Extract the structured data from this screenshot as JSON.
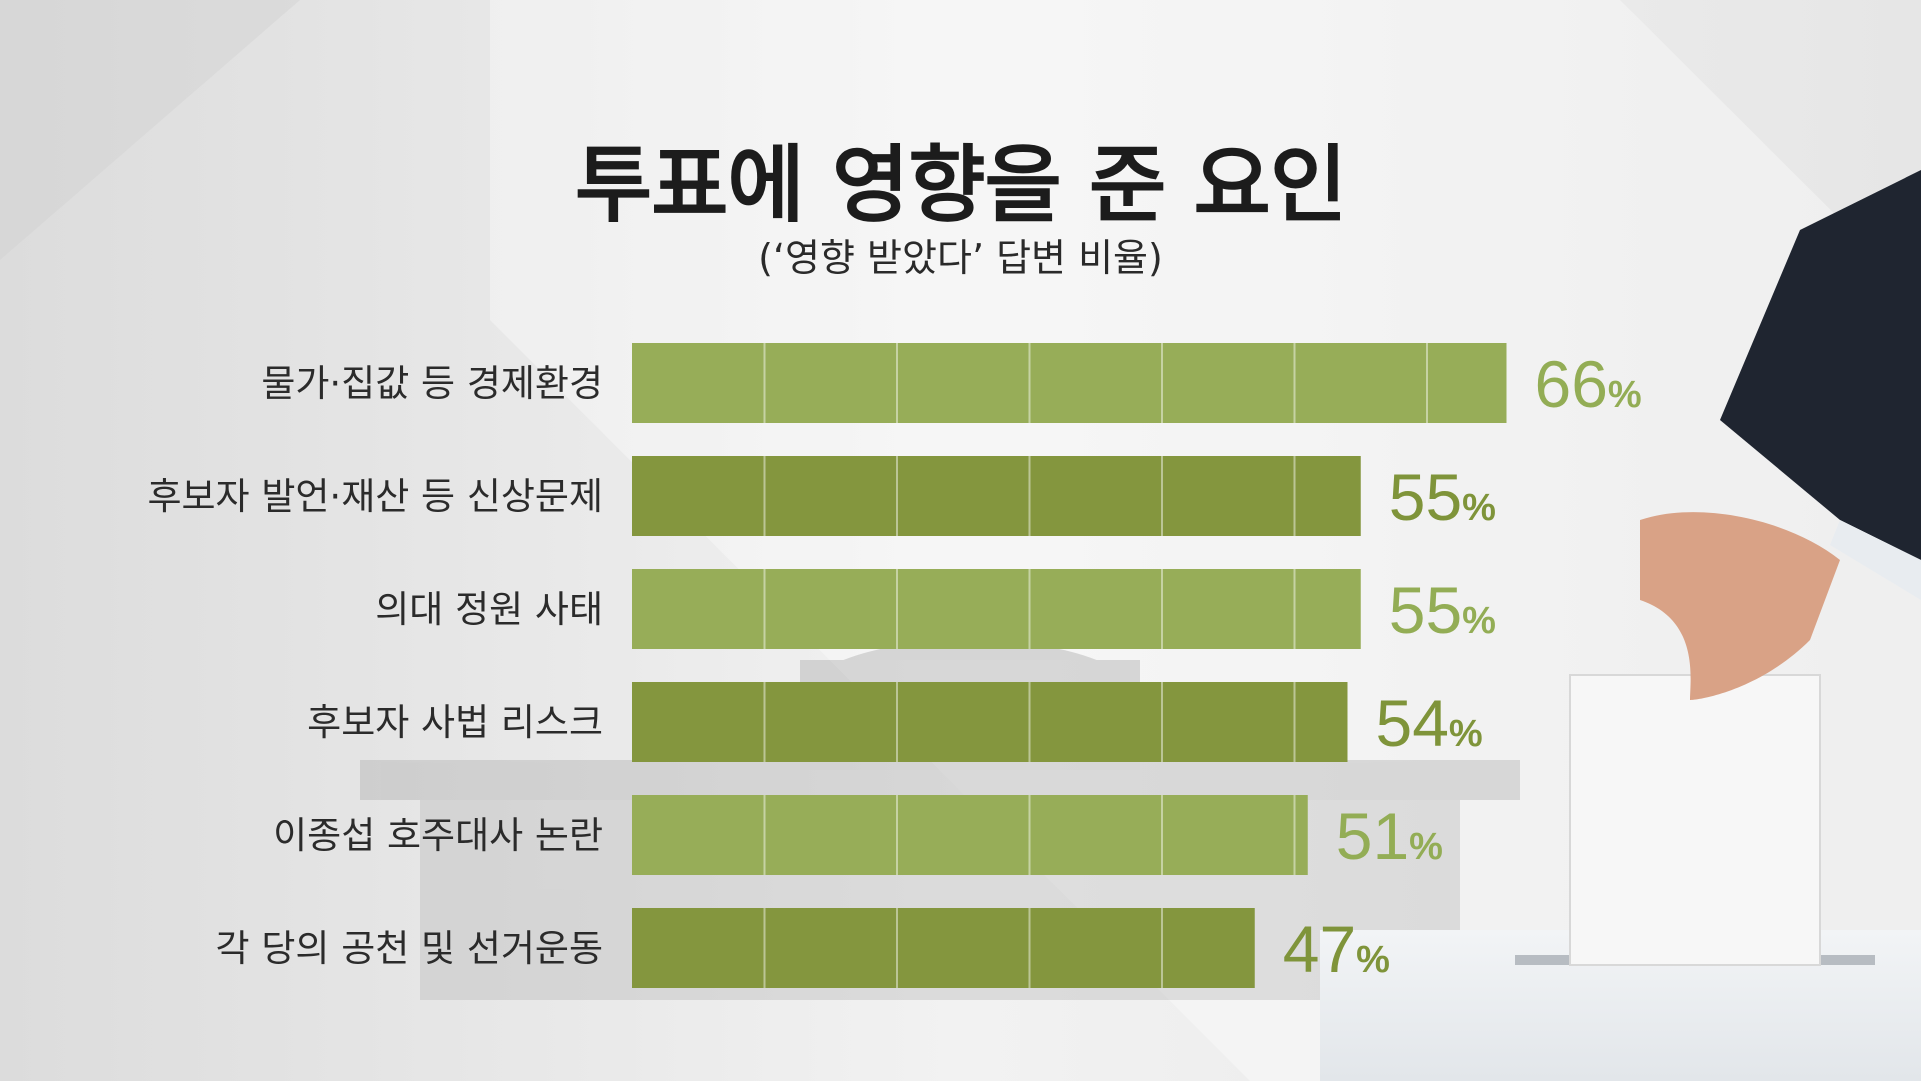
{
  "header": {
    "title": "투표에 영향을 준 요인",
    "subtitle": "(‘영향 받았다’ 답변 비율)"
  },
  "colors": {
    "bar_light": "#97ad58",
    "bar_dark": "#84963e",
    "label_light": "#93ad55",
    "label_dark": "#7f943a"
  },
  "chart_data": {
    "type": "bar",
    "orientation": "horizontal",
    "title": "투표에 영향을 준 요인",
    "subtitle": "(‘영향 받았다’ 답변 비율)",
    "unit": "%",
    "categories": [
      "물가·집값 등 경제환경",
      "후보자 발언·재산 등 신상문제",
      "의대 정원 사태",
      "후보자 사법 리스크",
      "이종섭 호주대사 논란",
      "각 당의 공천 및 선거운동"
    ],
    "values": [
      66,
      55,
      55,
      54,
      51,
      47
    ],
    "xlim": [
      0,
      100
    ],
    "grid": true
  }
}
